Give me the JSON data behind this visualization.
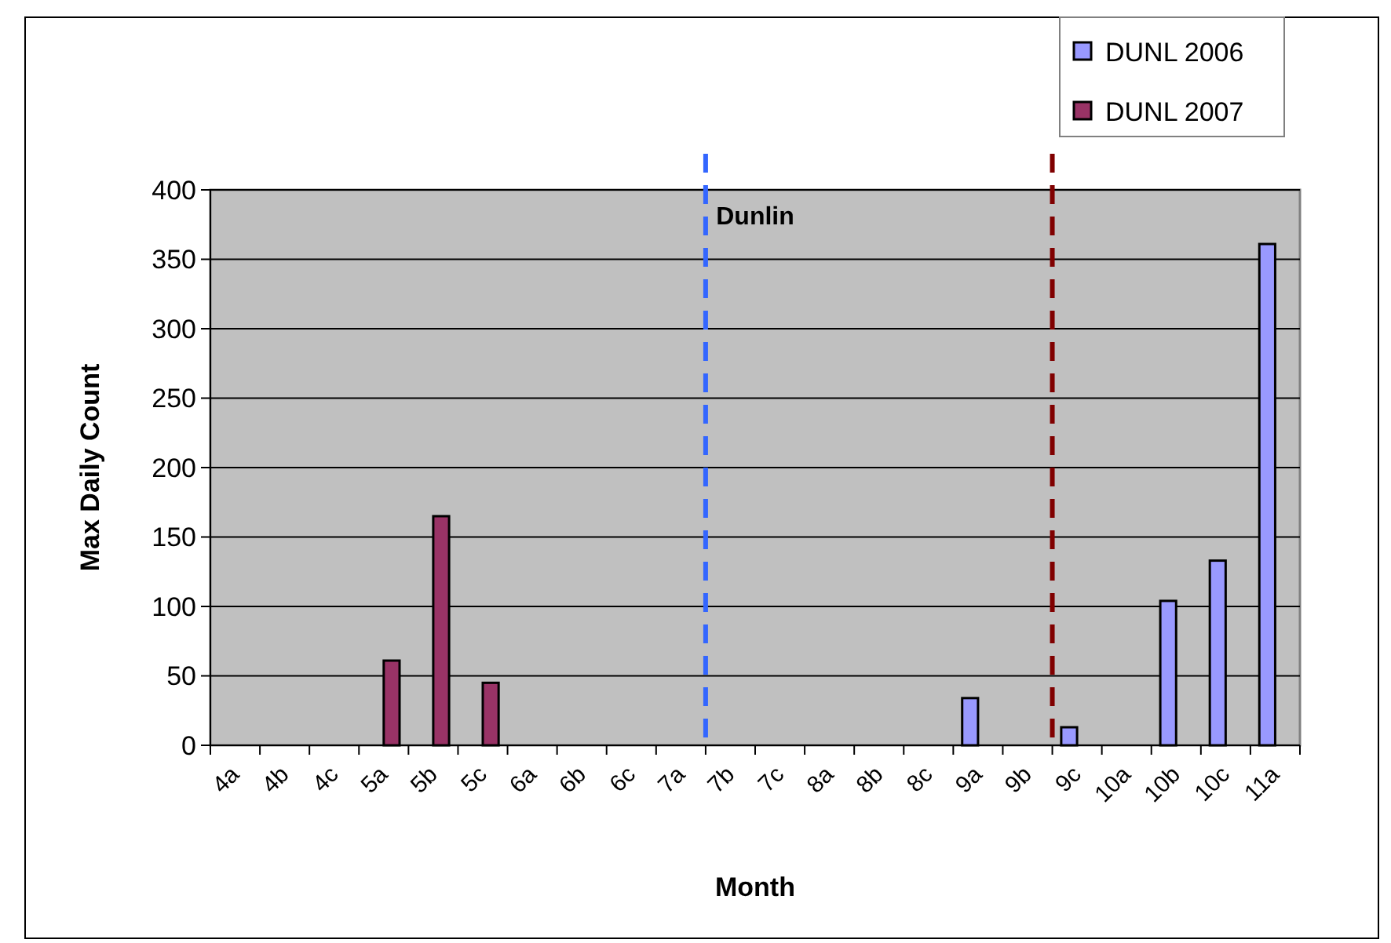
{
  "chart_data": {
    "type": "bar",
    "title": "Dunlin",
    "xlabel": "Month",
    "ylabel": "Max Daily Count",
    "categories": [
      "4a",
      "4b",
      "4c",
      "5a",
      "5b",
      "5c",
      "6a",
      "6b",
      "6c",
      "7a",
      "7b",
      "7c",
      "8a",
      "8b",
      "8c",
      "9a",
      "9b",
      "9c",
      "10a",
      "10b",
      "10c",
      "11a"
    ],
    "series": [
      {
        "name": "DUNL 2006",
        "color": "#9999ff",
        "values": [
          null,
          null,
          null,
          null,
          null,
          null,
          null,
          null,
          null,
          null,
          null,
          null,
          null,
          null,
          null,
          34,
          null,
          13,
          null,
          104,
          133,
          361
        ]
      },
      {
        "name": "DUNL 2007",
        "color": "#993366",
        "values": [
          null,
          null,
          null,
          61,
          165,
          45,
          null,
          null,
          null,
          null,
          null,
          null,
          null,
          null,
          null,
          null,
          null,
          null,
          null,
          null,
          null,
          null
        ]
      }
    ],
    "ylim": [
      0,
      400
    ],
    "yticks": [
      0,
      50,
      100,
      150,
      200,
      250,
      300,
      350,
      400
    ],
    "grid": "y",
    "legend": "top right",
    "ref_lines": [
      {
        "axis": "x",
        "value": "7b",
        "color": "#3366ff",
        "line_style": "dashed"
      },
      {
        "axis": "x",
        "value": "9c",
        "color": "#800000",
        "line_style": "dashed"
      }
    ]
  }
}
